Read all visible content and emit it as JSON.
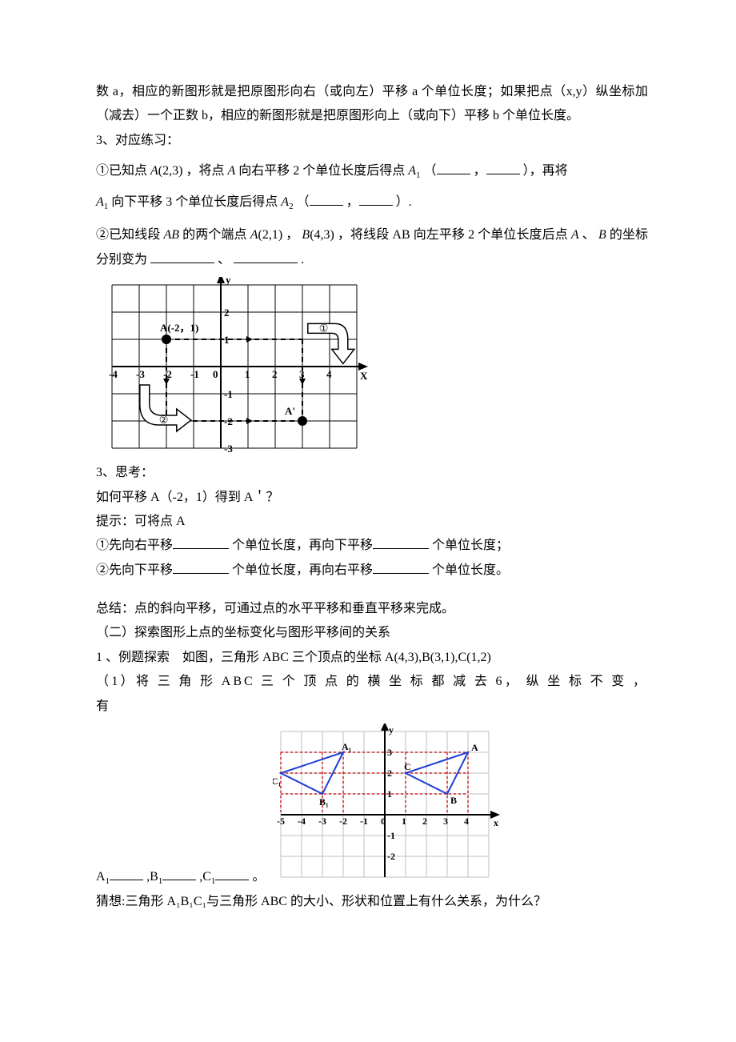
{
  "p1": "数 a，相应的新图形就是把原图形向右（或向左）平移 a 个单位长度；如果把点（x,y）纵坐标加（减去）一个正数 b，相应的新图形就是把原图形向上（或向下）平移 b 个单位长度。",
  "p2": "3、对应练习：",
  "ex1_a": "①已知点",
  "ex1_b": "A",
  "ex1_c": "(2,3)",
  "ex1_d": "，将点",
  "ex1_e": "A",
  "ex1_f": "向右平移 2 个单位长度后得点",
  "ex1_g": "A",
  "ex1_h": "（",
  "ex1_i": "，",
  "ex1_j": "），再将",
  "ex1_k": "A",
  "ex1_l": "向下平移 3 个单位长度后得点",
  "ex1_m": "A",
  "ex1_n": "（",
  "ex1_o": "，",
  "ex1_p": "）.",
  "ex2_a": "②已知线段",
  "ex2_b": "AB",
  "ex2_c": "的两个端点",
  "ex2_d": "A",
  "ex2_e": "(2,1)",
  "ex2_f": "，",
  "ex2_g": "B",
  "ex2_h": "(4,3)",
  "ex2_i": "，将线段 AB 向左平移 2 个单位长度后点",
  "ex2_j": "A",
  "ex2_k": "、",
  "ex2_l": "B",
  "ex2_m": "的坐标分别变为",
  "ex2_n": "、",
  "ex2_o": ".",
  "fig1": {
    "xlim": [
      -4,
      5
    ],
    "ylim": [
      -3,
      3
    ],
    "cell": 34,
    "axis_color": "#000000",
    "grid_color": "#000000",
    "grid_width": 1,
    "bg": "#ffffff",
    "label_font": 13,
    "pointA_label": "A(-2，1)",
    "pointA": [
      -2,
      1
    ],
    "pointAprime_label": "A'",
    "pointAprime": [
      3,
      -2
    ],
    "marker_radius": 6,
    "marker_color": "#000000",
    "dash": "6,5",
    "arrow_labels": {
      "one": "①",
      "two": "②"
    },
    "ticks_x": [
      -4,
      -3,
      -2,
      -1,
      0,
      1,
      2,
      3,
      4
    ],
    "ticks_y": [
      -3,
      -2,
      -1,
      1,
      2
    ],
    "ylabel": "y",
    "xlabel": "X"
  },
  "p3": "3、思考：",
  "p4": "如何平移 A（-2，1）得到 A＇？",
  "p5": "提示：可将点 A",
  "p6a": "①先向右平移",
  "p6b": "个单位长度，再向下平移",
  "p6c": "个单位长度；",
  "p7a": "②先向下平移",
  "p7b": "个单位长度，再向右平移",
  "p7c": "个单位长度。",
  "p8": "总结：点的斜向平移，可通过点的水平平移和垂直平移来完成。",
  "p9": "（二）探索图形上点的坐标变化与图形平移间的关系",
  "p10": "1 、例题探索　如图，三角形 ABC 三个顶点的坐标 A(4,3),B(3,1),C(1,2)",
  "p11": "（1）将 三 角 形 ABC 三 个 顶 点 的 横 坐 标 都 减 去 6， 纵 坐 标 不 变 ， 有",
  "fig2": {
    "xlim": [
      -5,
      5
    ],
    "ylim": [
      -3,
      4
    ],
    "cell": 26,
    "axis_color": "#000000",
    "grid_color": "#bfbfbf",
    "grid_width": 1,
    "bg": "#ffffff",
    "label_font": 12,
    "triangle_color": "#1f3fd6",
    "triangle_width": 2,
    "guide_color": "#d02020",
    "guide_dash": "3,3",
    "A": [
      4,
      3
    ],
    "B": [
      3,
      1
    ],
    "C": [
      1,
      2
    ],
    "A1": [
      -2,
      3
    ],
    "B1": [
      -3,
      1
    ],
    "C1": [
      -5,
      2
    ],
    "labels": {
      "A": "A",
      "B": "B",
      "C": "C",
      "A1": "A₁",
      "B1": "B₁",
      "C1": "C₁"
    },
    "ticks_x": [
      -5,
      -4,
      -3,
      -2,
      -1,
      0,
      1,
      2,
      3,
      4
    ],
    "ticks_y": [
      -2,
      -1,
      1,
      2,
      3
    ],
    "ylabel": "y",
    "xlabel": "x"
  },
  "p12a": "A",
  "p12b": ",B",
  "p12c": ",C",
  "p12d": "。",
  "p13": "猜想:三角形 A₁B₁C₁与三角形 ABC 的大小、形状和位置上有什么关系，为什么？"
}
